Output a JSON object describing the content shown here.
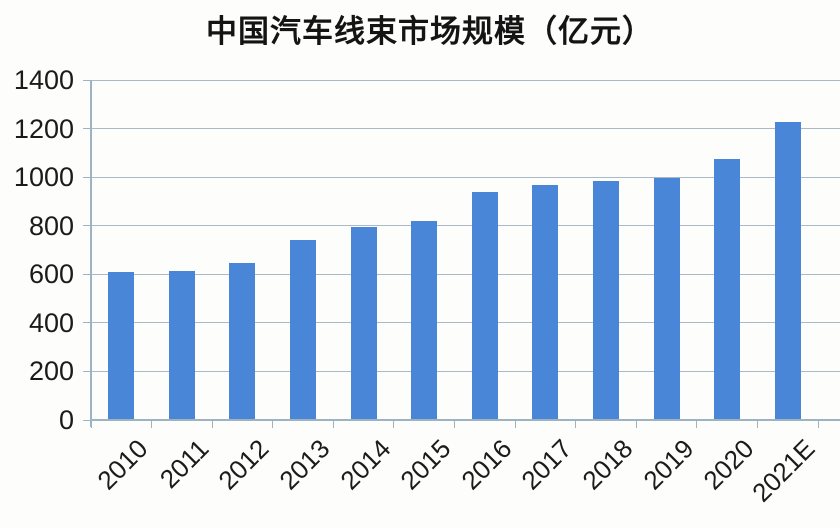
{
  "title": "中国汽车线束市场规模（亿元）",
  "chart_data": {
    "type": "bar",
    "title": "中国汽车线束市场规模（亿元）",
    "categories": [
      "2010",
      "2011",
      "2012",
      "2013",
      "2014",
      "2015",
      "2016",
      "2017",
      "2018",
      "2019",
      "2020",
      "2021E"
    ],
    "values": [
      611,
      613,
      645,
      742,
      794,
      819,
      940,
      968,
      985,
      995,
      1075,
      1226
    ],
    "xlabel": "",
    "ylabel": "",
    "ylim": [
      0,
      1400
    ],
    "yticks": [
      0,
      200,
      400,
      600,
      800,
      1000,
      1200,
      1400
    ],
    "grid": true,
    "legend": false,
    "bar_color": "#4a86d8",
    "gridline_color": "#aab9c5",
    "axis_color": "#9db3c2",
    "text_color": "#1b1b1b",
    "background": "#fdfdfb"
  }
}
